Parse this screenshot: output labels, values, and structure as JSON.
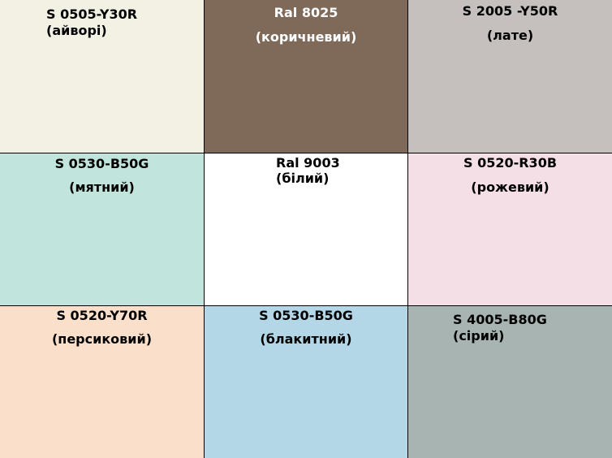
{
  "cells": [
    {
      "code": "S 0505-Y30R",
      "name": "(айворі)",
      "color": "#f3f0e4",
      "text_color": "#000000"
    },
    {
      "code": "Ral 8025",
      "name": "(коричневий)",
      "color": "#7f6a5a",
      "text_color": "#ffffff"
    },
    {
      "code": "S 2005 -Y50R",
      "name": "(лате)",
      "color": "#c5c0bd",
      "text_color": "#000000"
    },
    {
      "code": "S 0530-B50G",
      "name": "(мятний)",
      "color": "#c1e5dd",
      "text_color": "#000000"
    },
    {
      "code": "Ral 9003",
      "name": "(білий)",
      "color": "#ffffff",
      "text_color": "#000000"
    },
    {
      "code": "S 0520-R30B",
      "name": "(рожевий)",
      "color": "#f5dfe6",
      "text_color": "#000000"
    },
    {
      "code": "S 0520-Y70R",
      "name": "(персиковий)",
      "color": "#fae0cb",
      "text_color": "#000000"
    },
    {
      "code": "S 0530-B50G",
      "name": "(блакитний)",
      "color": "#b3d7e7",
      "text_color": "#000000"
    },
    {
      "code": "S 4005-B80G",
      "name": "(сірий)",
      "color": "#a7b4b1",
      "text_color": "#000000"
    }
  ]
}
